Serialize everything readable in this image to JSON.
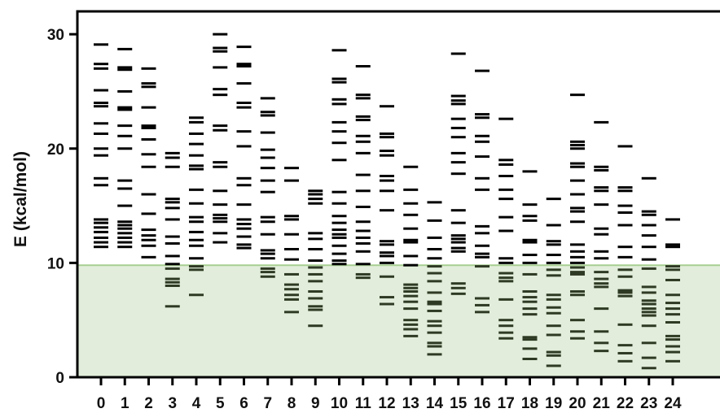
{
  "chart_data": {
    "type": "scatter",
    "ylabel": "E (kcal/mol)",
    "xlabel": "",
    "title": "",
    "ylim": [
      0,
      32
    ],
    "yticks": [
      0,
      10,
      20,
      30
    ],
    "categories": [
      "0",
      "1",
      "2",
      "3",
      "4",
      "5",
      "6",
      "7",
      "8",
      "9",
      "10",
      "11",
      "12",
      "13",
      "14",
      "15",
      "16",
      "17",
      "18",
      "19",
      "20",
      "21",
      "22",
      "23",
      "24"
    ],
    "highlight_band": {
      "from": 0,
      "to": 9.8,
      "color": "#e2eedb",
      "edge_color": "#a7cf92"
    },
    "mark_color": "#000000",
    "mark_color_in_band": "#2f3a24",
    "levels": [
      [
        29.1,
        27.4,
        27.0,
        25.1,
        24.0,
        23.7,
        22.2,
        21.3,
        20.0,
        19.4,
        17.4,
        16.8,
        13.8,
        13.5,
        13.1,
        12.7,
        12.2,
        11.8,
        11.4
      ],
      [
        28.7,
        27.1,
        26.9,
        25.0,
        23.6,
        23.4,
        22.0,
        21.1,
        20.0,
        17.2,
        16.5,
        15.0,
        13.6,
        13.3,
        13.0,
        12.6,
        12.2,
        11.8,
        11.4
      ],
      [
        27.0,
        25.7,
        25.4,
        23.6,
        22.0,
        21.8,
        20.8,
        19.5,
        18.4,
        16.0,
        14.3,
        12.9,
        12.4,
        12.0,
        11.5,
        10.5
      ],
      [
        19.6,
        19.2,
        18.4,
        15.6,
        15.3,
        14.8,
        13.8,
        12.3,
        11.7,
        10.6,
        9.9,
        9.5,
        8.6,
        8.3,
        8.0,
        6.2
      ],
      [
        22.7,
        22.3,
        21.3,
        20.4,
        19.4,
        18.5,
        18.2,
        16.4,
        15.2,
        14.0,
        13.6,
        12.7,
        12.0,
        11.5,
        10.4,
        9.7,
        9.4,
        7.2
      ],
      [
        30.0,
        28.8,
        28.5,
        27.1,
        25.2,
        24.7,
        22.0,
        21.6,
        18.8,
        18.4,
        16.3,
        15.1,
        14.2,
        13.9,
        13.6,
        12.6,
        11.8
      ],
      [
        28.9,
        27.4,
        27.2,
        25.7,
        24.0,
        23.6,
        21.5,
        20.2,
        17.4,
        16.8,
        15.1,
        13.8,
        13.4,
        13.0,
        12.3,
        11.6,
        11.3
      ],
      [
        24.4,
        23.2,
        22.9,
        21.4,
        19.9,
        19.2,
        18.3,
        17.2,
        16.2,
        14.0,
        13.6,
        12.5,
        11.1,
        10.8,
        10.4,
        9.5,
        9.2,
        8.8
      ],
      [
        18.3,
        17.2,
        14.1,
        13.8,
        12.5,
        11.2,
        10.3,
        9.0,
        8.1,
        7.7,
        7.2,
        6.8,
        5.7
      ],
      [
        16.3,
        16.0,
        15.6,
        15.2,
        12.6,
        12.1,
        11.2,
        10.2,
        9.6,
        9.0,
        8.4,
        7.5,
        6.9,
        6.2,
        5.9,
        4.5
      ],
      [
        28.6,
        26.1,
        25.8,
        24.3,
        23.9,
        22.3,
        21.5,
        20.5,
        19.0,
        16.2,
        15.2,
        14.1,
        13.5,
        12.9,
        12.5,
        12.2,
        11.5,
        10.8,
        10.2,
        9.9
      ],
      [
        27.2,
        24.7,
        24.4,
        22.8,
        22.5,
        21.1,
        20.6,
        19.6,
        17.7,
        16.3,
        14.9,
        13.6,
        12.8,
        12.2,
        11.7,
        11.0,
        9.9,
        9.0,
        8.7
      ],
      [
        23.7,
        21.3,
        21.0,
        19.8,
        19.4,
        17.6,
        17.2,
        16.3,
        14.6,
        11.9,
        11.6,
        10.9,
        10.6,
        10.0,
        8.8,
        7.0,
        6.4
      ],
      [
        18.4,
        16.4,
        15.2,
        14.2,
        13.0,
        12.0,
        11.8,
        10.6,
        9.8,
        8.1,
        7.8,
        7.5,
        7.1,
        6.6,
        6.0,
        5.0,
        4.6,
        4.2,
        3.6
      ],
      [
        15.3,
        13.7,
        12.2,
        11.2,
        10.4,
        9.7,
        9.1,
        8.4,
        7.4,
        6.6,
        6.4,
        5.8,
        4.9,
        4.5,
        3.9,
        3.0,
        2.7,
        2.0
      ],
      [
        28.3,
        24.6,
        24.2,
        23.9,
        22.6,
        21.8,
        21.0,
        19.6,
        18.8,
        17.8,
        14.6,
        13.5,
        12.4,
        12.1,
        11.8,
        11.3,
        11.0,
        8.2,
        7.8,
        7.3
      ],
      [
        26.8,
        23.0,
        22.7,
        21.1,
        20.6,
        19.3,
        17.4,
        16.4,
        13.2,
        12.6,
        11.5,
        10.8,
        10.5,
        9.7,
        6.9,
        6.3,
        5.7
      ],
      [
        22.6,
        19.0,
        18.6,
        17.6,
        16.4,
        15.6,
        14.0,
        12.8,
        10.4,
        10.0,
        9.1,
        8.7,
        8.4,
        6.8,
        5.0,
        4.5,
        3.9,
        3.4
      ],
      [
        18.0,
        15.1,
        14.1,
        13.7,
        12.0,
        11.8,
        10.7,
        10.0,
        9.0,
        7.5,
        7.0,
        6.6,
        6.0,
        5.5,
        3.5,
        3.3,
        2.5,
        1.6
      ],
      [
        15.6,
        13.3,
        11.9,
        11.6,
        10.7,
        10.0,
        9.4,
        8.9,
        7.2,
        6.8,
        6.1,
        5.6,
        4.5,
        3.7,
        2.2,
        1.9,
        1.0
      ],
      [
        24.7,
        20.6,
        20.3,
        20.0,
        18.7,
        18.4,
        17.2,
        16.0,
        14.8,
        14.5,
        13.6,
        11.6,
        11.0,
        10.5,
        10.0,
        9.6,
        9.2,
        9.0,
        7.5,
        7.2,
        5.0,
        4.0,
        3.4
      ],
      [
        22.3,
        18.4,
        18.1,
        16.6,
        16.3,
        15.1,
        13.0,
        12.5,
        11.0,
        10.4,
        9.2,
        8.6,
        8.2,
        7.9,
        6.0,
        4.0,
        3.0,
        2.3
      ],
      [
        20.2,
        16.6,
        16.3,
        15.0,
        14.4,
        13.3,
        11.4,
        10.5,
        9.4,
        8.8,
        7.6,
        7.4,
        7.1,
        4.6,
        2.8,
        2.1,
        1.4
      ],
      [
        17.4,
        14.5,
        14.2,
        13.3,
        12.4,
        11.4,
        10.3,
        9.5,
        7.9,
        7.4,
        6.7,
        6.4,
        6.0,
        5.7,
        5.4,
        4.5,
        3.0,
        1.7,
        0.8
      ],
      [
        13.8,
        11.6,
        11.4,
        9.7,
        9.4,
        8.5,
        7.2,
        6.5,
        6.0,
        5.5,
        4.8,
        3.6,
        3.3,
        2.7,
        2.2,
        1.4
      ]
    ]
  }
}
